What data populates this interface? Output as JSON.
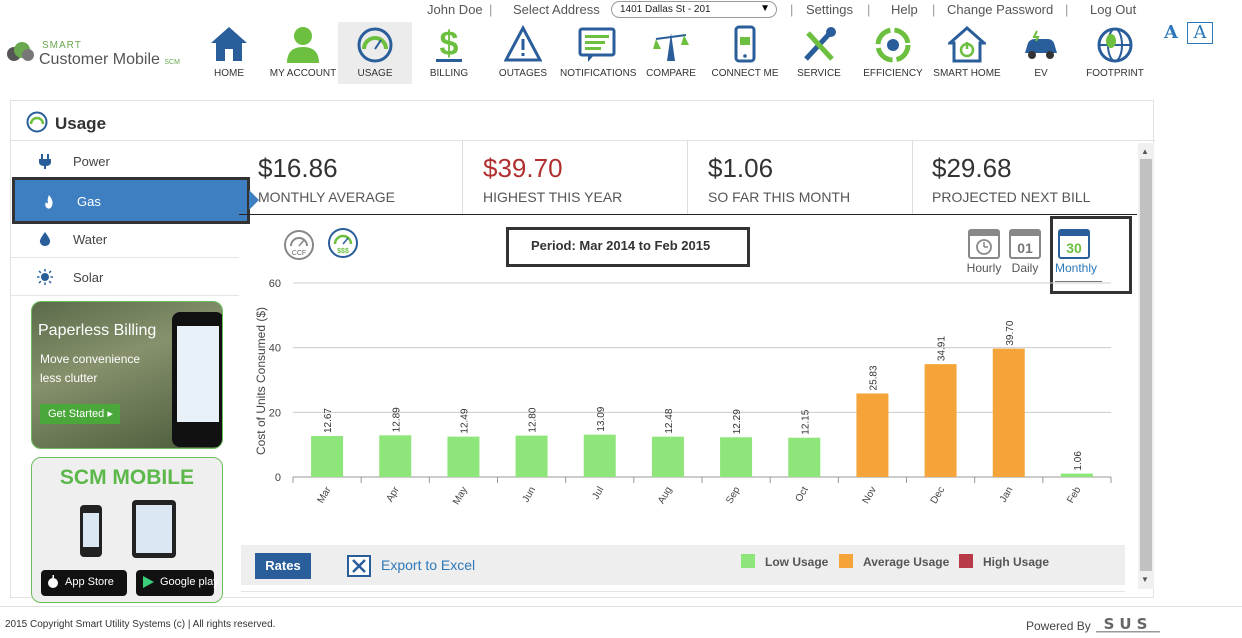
{
  "toplinks": {
    "user": "John Doe",
    "select_address_label": "Select Address",
    "address_value": "1401 Dallas St - 201",
    "settings": "Settings",
    "help": "Help",
    "change_password": "Change Password",
    "logout": "Log Out",
    "font_a": "A",
    "font_b": "A"
  },
  "logo": {
    "smart": "SMART",
    "name": "Customer Mobile",
    "badge": "SCM"
  },
  "nav": [
    {
      "label": "HOME",
      "icon": "home-icon"
    },
    {
      "label": "MY ACCOUNT",
      "icon": "user-icon"
    },
    {
      "label": "USAGE",
      "icon": "gauge-icon"
    },
    {
      "label": "BILLING",
      "icon": "dollar-icon"
    },
    {
      "label": "OUTAGES",
      "icon": "warning-icon"
    },
    {
      "label": "NOTIFICATIONS",
      "icon": "message-icon"
    },
    {
      "label": "COMPARE",
      "icon": "compare-icon"
    },
    {
      "label": "CONNECT ME",
      "icon": "phone-icon"
    },
    {
      "label": "SERVICE",
      "icon": "tools-icon"
    },
    {
      "label": "EFFICIENCY",
      "icon": "recycle-icon"
    },
    {
      "label": "SMART HOME",
      "icon": "smart-home-icon"
    },
    {
      "label": "EV",
      "icon": "ev-car-icon"
    },
    {
      "label": "FOOTPRINT",
      "icon": "globe-icon"
    }
  ],
  "panel": {
    "title": "Usage"
  },
  "sidebar": [
    {
      "label": "Power",
      "icon": "plug-icon"
    },
    {
      "label": "Gas",
      "icon": "flame-icon"
    },
    {
      "label": "Water",
      "icon": "drop-icon"
    },
    {
      "label": "Solar",
      "icon": "sun-icon"
    }
  ],
  "ads": {
    "paperless_title": "Paperless Billing",
    "paperless_line1": "Move convenience",
    "paperless_line2": "less clutter",
    "paperless_button": "Get Started",
    "mobile_title": "SCM MOBILE",
    "appstore": "App Store",
    "googleplay": "Google play"
  },
  "cards": [
    {
      "value": "$16.86",
      "label": "Monthly Average",
      "color": "#333333"
    },
    {
      "value": "$39.70",
      "label": "Highest This Year",
      "color": "#b03030"
    },
    {
      "value": "$1.06",
      "label": "So Far This Month",
      "color": "#333333"
    },
    {
      "value": "$29.68",
      "label": "Projected Next Bill",
      "color": "#333333"
    }
  ],
  "unit_buttons": {
    "ccf": "CCF",
    "usd": "$$$"
  },
  "period": "Period: Mar 2014 to Feb 2015",
  "time_buttons": {
    "hourly": "Hourly",
    "daily": "Daily",
    "daily_num": "01",
    "monthly": "Monthly",
    "monthly_num": "30"
  },
  "chart_data": {
    "type": "bar",
    "ylabel": "Cost of Units Consumed ($)",
    "ylim": [
      0,
      60
    ],
    "yticks": [
      0,
      20,
      40,
      60
    ],
    "grid": true,
    "categories": [
      "Mar",
      "Apr",
      "May",
      "Jun",
      "Jul",
      "Aug",
      "Sep",
      "Oct",
      "Nov",
      "Dec",
      "Jan",
      "Feb"
    ],
    "values": [
      12.67,
      12.89,
      12.49,
      12.8,
      13.09,
      12.48,
      12.29,
      12.15,
      25.83,
      34.91,
      39.7,
      1.06
    ],
    "labels": [
      "12.67",
      "12.89",
      "12.49",
      "12.80",
      "13.09",
      "12.48",
      "12.29",
      "12.15",
      "25.83",
      "34.91",
      "39.70",
      "1.06"
    ],
    "levels": [
      "low",
      "low",
      "low",
      "low",
      "low",
      "low",
      "low",
      "low",
      "average",
      "average",
      "average",
      "low"
    ],
    "colors": {
      "low": "#8ee67a",
      "average": "#f5a43a",
      "high": "#b83a48"
    }
  },
  "bottom": {
    "rates": "Rates",
    "export": "Export to Excel",
    "legend": [
      {
        "label": "Low Usage",
        "color": "#8ee67a"
      },
      {
        "label": "Average Usage",
        "color": "#f5a43a"
      },
      {
        "label": "High Usage",
        "color": "#b83a48"
      }
    ]
  },
  "footer": {
    "copyright": "2015 Copyright Smart Utility Systems (c) | All rights reserved.",
    "powered": "Powered By",
    "sus": "SUS"
  }
}
